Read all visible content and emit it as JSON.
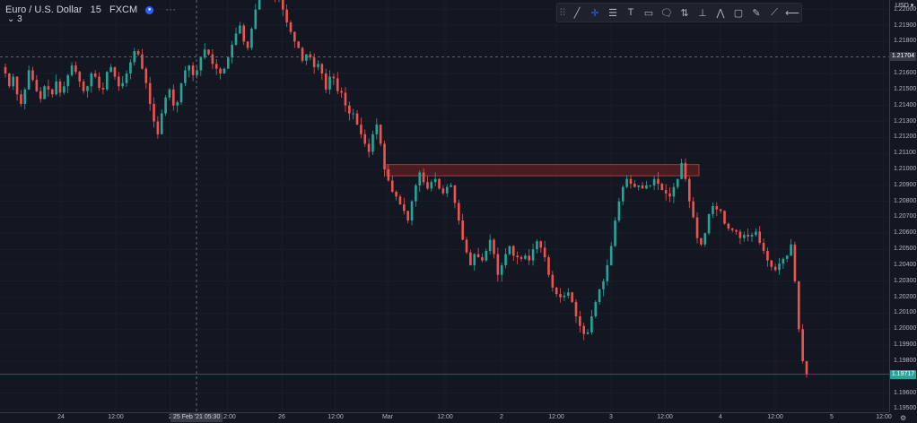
{
  "legend": {
    "symbol": "Euro / U.S. Dollar",
    "interval": "15",
    "exchange": "FXCM",
    "more": "···",
    "collapse": "⌄ 3"
  },
  "toolbar": {
    "tools": [
      {
        "name": "grip-icon",
        "glyph": "⠿"
      },
      {
        "name": "trend-line-icon",
        "glyph": "╱"
      },
      {
        "name": "crosshair-icon",
        "glyph": "✛"
      },
      {
        "name": "fib-retracement-icon",
        "glyph": "☰"
      },
      {
        "name": "text-icon",
        "glyph": "T"
      },
      {
        "name": "callout-icon",
        "glyph": "▭"
      },
      {
        "name": "note-icon",
        "glyph": "🗨"
      },
      {
        "name": "price-range-icon",
        "glyph": "⇅"
      },
      {
        "name": "measure-icon",
        "glyph": "⊥"
      },
      {
        "name": "pattern-icon",
        "glyph": "⋀"
      },
      {
        "name": "rectangle-icon",
        "glyph": "▢"
      },
      {
        "name": "brush-icon",
        "glyph": "✎"
      },
      {
        "name": "path-icon",
        "glyph": "⟋"
      },
      {
        "name": "horizontal-line-icon",
        "glyph": "⟵"
      }
    ]
  },
  "colors": {
    "up": "#26a69a",
    "down": "#ef5350",
    "background": "#131722",
    "rect_fill": "#5d1f22",
    "rect_border": "#a83a3a",
    "crosshair": "#787b86",
    "last_price": "#26a69a"
  },
  "chart_data": {
    "type": "candlestick",
    "currency": "USD",
    "currency_marker": "▾",
    "y_ticks": [
      "1.22000",
      "1.21900",
      "1.21800",
      "1.21600",
      "1.21500",
      "1.21400",
      "1.21300",
      "1.21200",
      "1.21100",
      "1.21000",
      "1.20900",
      "1.20800",
      "1.20700",
      "1.20600",
      "1.20500",
      "1.20400",
      "1.20300",
      "1.20200",
      "1.20100",
      "1.20000",
      "1.19900",
      "1.19800",
      "1.19600",
      "1.19500"
    ],
    "ylim": [
      1.1948,
      1.2206
    ],
    "x_ticks": [
      "24",
      "12:00",
      "2",
      "25 Feb '21",
      "05:30",
      "12:00",
      "26",
      "12:00",
      "Mar",
      "12:00",
      "2",
      "12:00",
      "3",
      "12:00",
      "4",
      "12:00",
      "5",
      "12:00"
    ],
    "crosshair_price": "1.21704",
    "last_price": "1.19717",
    "rectangle": {
      "price_top": 1.2103,
      "price_bottom": 1.2096
    },
    "series_close": [
      1.216,
      1.2152,
      1.2158,
      1.2147,
      1.2141,
      1.215,
      1.2162,
      1.2156,
      1.2149,
      1.2144,
      1.2152,
      1.215,
      1.2147,
      1.2155,
      1.2148,
      1.2152,
      1.2159,
      1.2165,
      1.2161,
      1.2155,
      1.2149,
      1.2152,
      1.216,
      1.2158,
      1.2151,
      1.215,
      1.2161,
      1.2164,
      1.2158,
      1.2152,
      1.2154,
      1.216,
      1.2167,
      1.2174,
      1.2172,
      1.2163,
      1.2154,
      1.2141,
      1.213,
      1.2122,
      1.2135,
      1.2145,
      1.215,
      1.214,
      1.2142,
      1.2154,
      1.2162,
      1.2165,
      1.2159,
      1.2162,
      1.217,
      1.2175,
      1.2172,
      1.2166,
      1.2163,
      1.216,
      1.2163,
      1.217,
      1.2178,
      1.2185,
      1.219,
      1.218,
      1.2176,
      1.2188,
      1.22,
      1.221,
      1.222,
      1.2215,
      1.2212,
      1.2208,
      1.2212,
      1.22,
      1.2192,
      1.2186,
      1.218,
      1.2176,
      1.2168,
      1.2172,
      1.217,
      1.2164,
      1.2166,
      1.216,
      1.215,
      1.2158,
      1.2157,
      1.2149,
      1.2148,
      1.214,
      1.2135,
      1.2135,
      1.2128,
      1.2122,
      1.2116,
      1.2111,
      1.2122,
      1.2128,
      1.2116,
      1.21,
      1.2093,
      1.2086,
      1.2083,
      1.2078,
      1.2074,
      1.2068,
      1.208,
      1.209,
      1.2098,
      1.2092,
      1.2088,
      1.2092,
      1.2094,
      1.2088,
      1.2085,
      1.2089,
      1.209,
      1.2079,
      1.2068,
      1.2056,
      1.2048,
      1.204,
      1.2047,
      1.2045,
      1.2043,
      1.2049,
      1.2056,
      1.2047,
      1.2034,
      1.204,
      1.2047,
      1.2052,
      1.2046,
      1.2045,
      1.2044,
      1.2046,
      1.2043,
      1.205,
      1.2055,
      1.2051,
      1.2045,
      1.2034,
      1.2026,
      1.2022,
      1.202,
      1.2021,
      1.2023,
      1.2017,
      1.2008,
      1.2002,
      1.1997,
      1.1998,
      1.2008,
      1.2017,
      1.2025,
      1.203,
      1.204,
      1.2052,
      1.2068,
      1.208,
      1.2089,
      1.2094,
      1.2091,
      1.2089,
      1.209,
      1.2088,
      1.209,
      1.209,
      1.2094,
      1.2091,
      1.2087,
      1.2085,
      1.2083,
      1.2089,
      1.2094,
      1.2104,
      1.2094,
      1.208,
      1.207,
      1.2057,
      1.2053,
      1.206,
      1.2072,
      1.2077,
      1.2075,
      1.2074,
      1.2066,
      1.2063,
      1.2062,
      1.2061,
      1.2057,
      1.2059,
      1.2058,
      1.2059,
      1.2061,
      1.2054,
      1.2049,
      1.2043,
      1.2039,
      1.2037,
      1.2041,
      1.2044,
      1.2046,
      1.2053,
      1.203,
      1.2,
      1.198,
      1.1972
    ]
  }
}
